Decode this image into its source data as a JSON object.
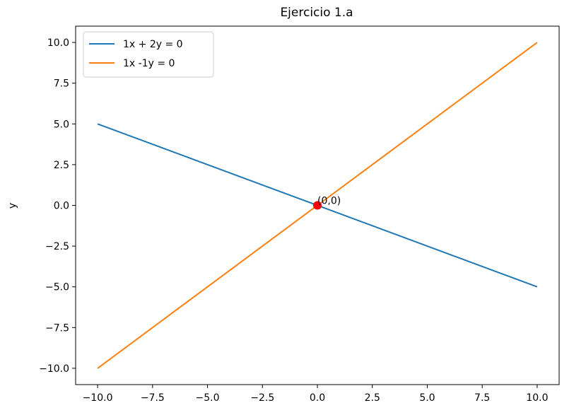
{
  "chart_data": {
    "type": "line",
    "title": "Ejercicio 1.a",
    "xlabel": "",
    "ylabel": "y",
    "xlim": [
      -11,
      11
    ],
    "ylim": [
      -11,
      11
    ],
    "xticks": [
      -10.0,
      -7.5,
      -5.0,
      -2.5,
      0.0,
      2.5,
      5.0,
      7.5,
      10.0
    ],
    "xtick_labels": [
      "−10.0",
      "−7.5",
      "−5.0",
      "−2.5",
      "0.0",
      "2.5",
      "5.0",
      "7.5",
      "10.0"
    ],
    "yticks": [
      10.0,
      7.5,
      5.0,
      2.5,
      0.0,
      -2.5,
      -5.0,
      -7.5,
      -10.0
    ],
    "ytick_labels": [
      "10.0",
      "7.5",
      "5.0",
      "2.5",
      "0.0",
      "−2.5",
      "−5.0",
      "−7.5",
      "−10.0"
    ],
    "grid": false,
    "legend_position": "top-left",
    "series": [
      {
        "name": "1x + 2y = 0",
        "color": "#1f77b4",
        "x": [
          -10,
          10
        ],
        "y": [
          5,
          -5
        ]
      },
      {
        "name": "1x -1y = 0",
        "color": "#ff7f0e",
        "x": [
          -10,
          10
        ],
        "y": [
          -10,
          10
        ]
      }
    ],
    "points": [
      {
        "x": 0,
        "y": 0,
        "color": "#ff0000",
        "label": "(0,0)"
      }
    ]
  }
}
